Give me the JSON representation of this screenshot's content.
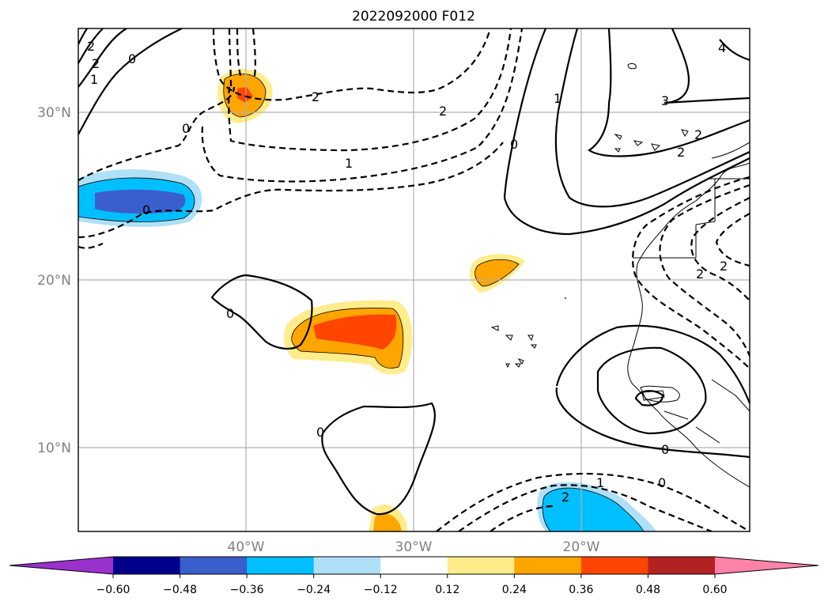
{
  "title": "2022092000 F012",
  "lat_labels": [
    "30°N",
    "20°N",
    "10°N"
  ],
  "lon_labels": [
    "40°W",
    "30°W",
    "20°W"
  ],
  "contour_labels": {
    "zero": "0",
    "one": "1",
    "two": "2",
    "three": "3",
    "four": "4"
  },
  "colorbar": {
    "ticks": [
      "−0.60",
      "−0.48",
      "−0.36",
      "−0.24",
      "−0.12",
      "0.12",
      "0.24",
      "0.36",
      "0.48",
      "0.60"
    ],
    "colors": [
      "#9932cc",
      "#00008b",
      "#3a5fcd",
      "#00bfff",
      "#afe0f8",
      "#ffffff",
      "#ffec8b",
      "#ffa500",
      "#ff4500",
      "#b22222",
      "#ff83a8"
    ]
  },
  "colors": {
    "pos_light": "#ffec8b",
    "pos_mid": "#ffa500",
    "pos_strong": "#ff4500",
    "neg_light": "#afe0f8",
    "neg_mid": "#00bfff",
    "neg_strong": "#3a5fcd"
  }
}
